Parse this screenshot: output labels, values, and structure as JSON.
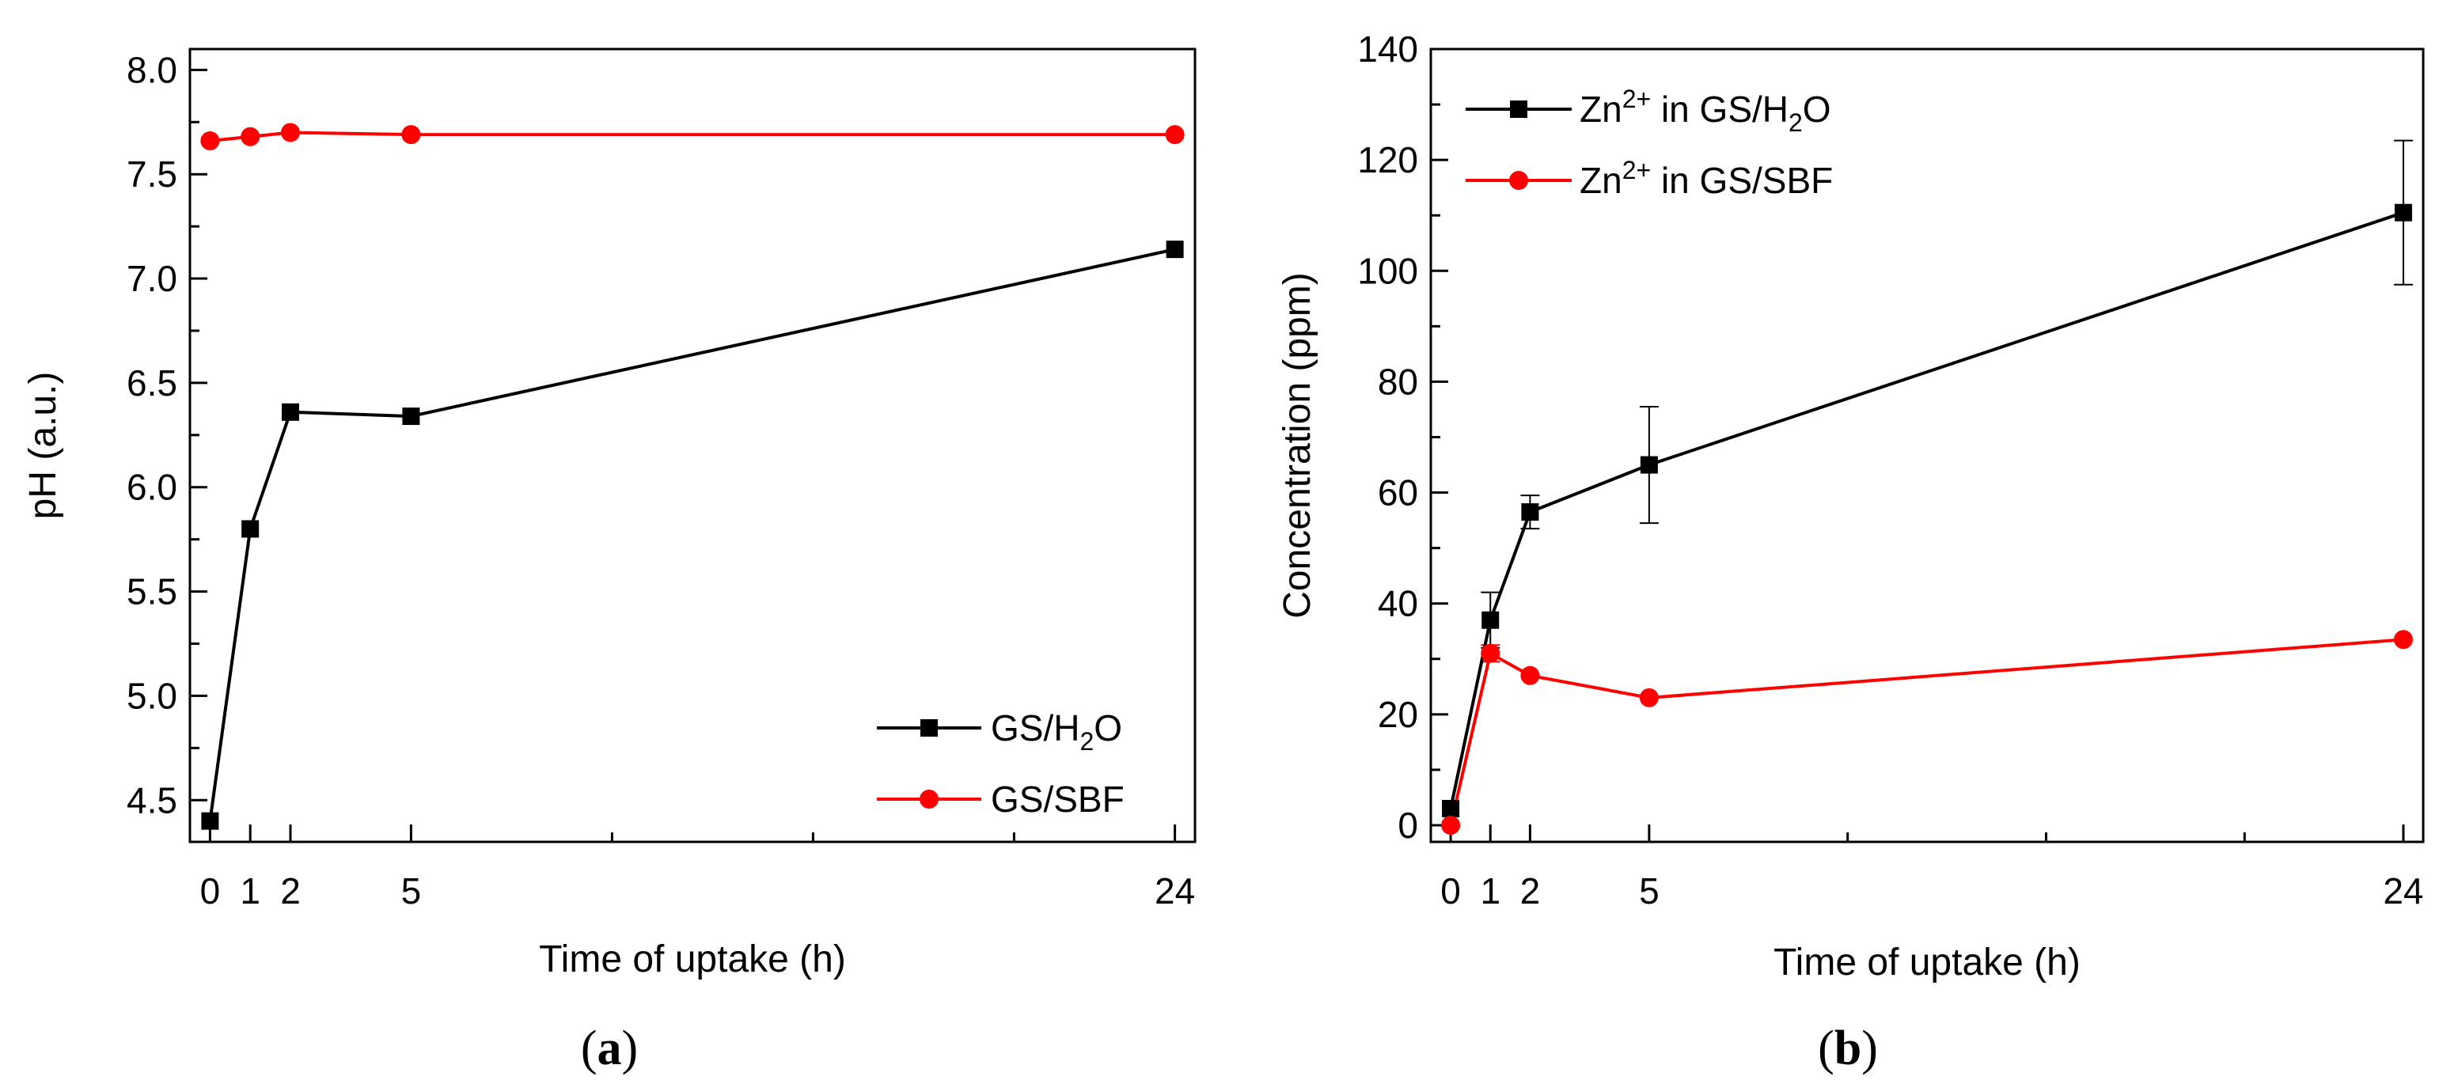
{
  "chart_data": [
    {
      "type": "line",
      "panel_label": "(a)",
      "panel_letter": "a",
      "xlabel": "Time of uptake (h)",
      "ylabel": "pH (a.u.)",
      "xlim": [
        -0.5,
        24.5
      ],
      "ylim": [
        4.3,
        8.1
      ],
      "xticks": [
        0,
        1,
        2,
        5,
        24
      ],
      "xtick_labels": [
        "0",
        "1",
        "2",
        "5",
        "24"
      ],
      "x_minor_ticks": [
        10,
        15,
        20
      ],
      "yticks": [
        4.5,
        5.0,
        5.5,
        6.0,
        6.5,
        7.0,
        7.5,
        8.0
      ],
      "ytick_labels": [
        "4.5",
        "5.0",
        "5.5",
        "6.0",
        "6.5",
        "7.0",
        "7.5",
        "8.0"
      ],
      "y_minor_ticks": [
        4.75,
        5.25,
        5.75,
        6.25,
        6.75,
        7.25,
        7.75
      ],
      "legend_position": "bottom-right",
      "series": [
        {
          "name": "GS/H2O",
          "legend_main": "GS/H",
          "legend_sub": "2",
          "legend_tail": "O",
          "color": "#000000",
          "marker": "square",
          "x": [
            0,
            1,
            2,
            5,
            24
          ],
          "values": [
            4.4,
            5.8,
            6.36,
            6.34,
            7.14
          ]
        },
        {
          "name": "GS/SBF",
          "legend_main": "GS/SBF",
          "legend_sub": "",
          "legend_tail": "",
          "color": "#ff0000",
          "marker": "circle",
          "x": [
            0,
            1,
            2,
            5,
            24
          ],
          "values": [
            7.66,
            7.68,
            7.7,
            7.69,
            7.69
          ]
        }
      ]
    },
    {
      "type": "line",
      "panel_label": "(b)",
      "panel_letter": "b",
      "xlabel": "Time of uptake (h)",
      "ylabel": "Concentration (ppm)",
      "xlim": [
        -0.5,
        24.5
      ],
      "ylim": [
        -3,
        140
      ],
      "xticks": [
        0,
        1,
        2,
        5,
        24
      ],
      "xtick_labels": [
        "0",
        "1",
        "2",
        "5",
        "24"
      ],
      "x_minor_ticks": [
        10,
        15,
        20
      ],
      "yticks": [
        0,
        20,
        40,
        60,
        80,
        100,
        120,
        140
      ],
      "ytick_labels": [
        "0",
        "20",
        "40",
        "60",
        "80",
        "100",
        "120",
        "140"
      ],
      "y_minor_ticks": [
        10,
        30,
        50,
        70,
        90,
        110,
        130
      ],
      "legend_position": "top-left",
      "series": [
        {
          "name": "Zn2+ in GS/H2O",
          "color": "#000000",
          "marker": "square",
          "x": [
            0,
            1,
            2,
            5,
            24
          ],
          "values": [
            3,
            37,
            56.5,
            65,
            110.5
          ],
          "errors": [
            0,
            5,
            3,
            10.5,
            13
          ]
        },
        {
          "name": "Zn2+ in GS/SBF",
          "color": "#ff0000",
          "marker": "circle",
          "x": [
            0,
            1,
            2,
            5,
            24
          ],
          "values": [
            0,
            31,
            27,
            23,
            33.5
          ],
          "errors": [
            0,
            1.5,
            0,
            0,
            0
          ]
        }
      ],
      "legend_labels": [
        {
          "pre": "Zn",
          "sup": "2+",
          "mid": " in GS/H",
          "sub": "2",
          "post": "O"
        },
        {
          "pre": "Zn",
          "sup": "2+",
          "mid": " in GS/SBF",
          "sub": "",
          "post": ""
        }
      ]
    }
  ]
}
